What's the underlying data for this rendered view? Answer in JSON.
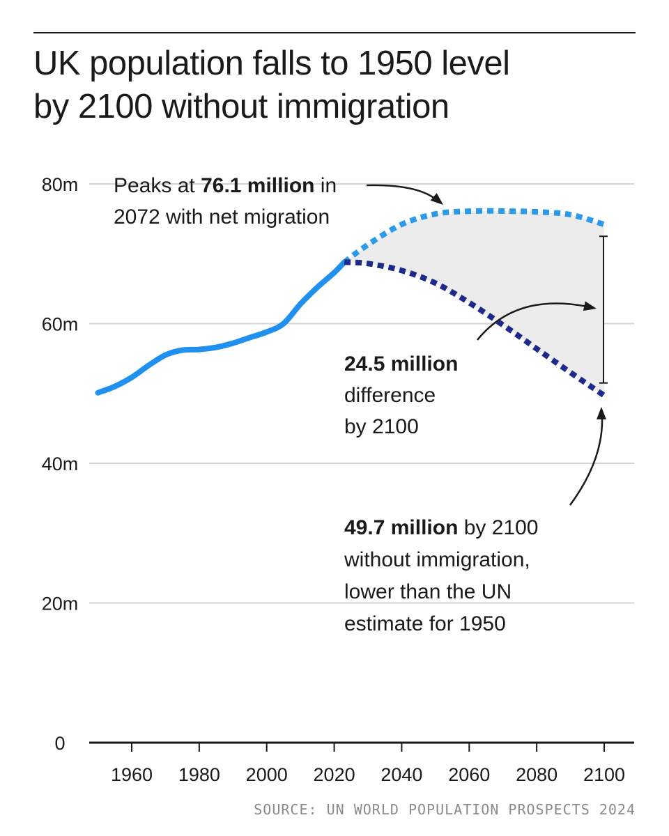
{
  "title_lines": [
    "UK population falls to 1950 level",
    "by 2100 without immigration"
  ],
  "source": "SOURCE: UN WORLD POPULATION PROSPECTS 2024",
  "colors": {
    "historical": "#1f8ff0",
    "with_migration": "#2b9ae8",
    "without_immigration": "#1e2a8a",
    "difference_fill": "#ececec",
    "grid": "#d4d4d4",
    "axis": "#1a1a1a",
    "text": "#1a1a1a"
  },
  "chart_data": {
    "type": "line",
    "title": "UK population falls to 1950 level by 2100 without immigration",
    "xlabel": "",
    "ylabel": "",
    "xlim": [
      1940,
      2110
    ],
    "ylim": [
      0,
      80
    ],
    "x_ticks": [
      1960,
      1980,
      2000,
      2020,
      2040,
      2060,
      2080,
      2100
    ],
    "y_ticks": [
      {
        "value": 0,
        "label": "0"
      },
      {
        "value": 20,
        "label": "20m"
      },
      {
        "value": 40,
        "label": "40m"
      },
      {
        "value": 60,
        "label": "60m"
      },
      {
        "value": 80,
        "label": "80m"
      }
    ],
    "grid": true,
    "series": [
      {
        "style": "solid",
        "points": [
          [
            1950,
            50.1
          ],
          [
            1955,
            51.0
          ],
          [
            1960,
            52.3
          ],
          [
            1965,
            54.0
          ],
          [
            1970,
            55.5
          ],
          [
            1975,
            56.2
          ],
          [
            1980,
            56.3
          ],
          [
            1985,
            56.6
          ],
          [
            1990,
            57.2
          ],
          [
            1995,
            58.0
          ],
          [
            2000,
            58.8
          ],
          [
            2005,
            60.0
          ],
          [
            2010,
            62.8
          ],
          [
            2015,
            65.2
          ],
          [
            2020,
            67.3
          ],
          [
            2023,
            68.8
          ]
        ]
      },
      {
        "style": "dotted",
        "points": [
          [
            2023,
            68.8
          ],
          [
            2030,
            71.3
          ],
          [
            2040,
            74.2
          ],
          [
            2050,
            75.7
          ],
          [
            2060,
            76.1
          ],
          [
            2072,
            76.1
          ],
          [
            2080,
            76.0
          ],
          [
            2090,
            75.6
          ],
          [
            2100,
            74.2
          ]
        ]
      },
      {
        "style": "dotted",
        "points": [
          [
            2023,
            68.8
          ],
          [
            2030,
            68.6
          ],
          [
            2040,
            67.6
          ],
          [
            2050,
            65.8
          ],
          [
            2060,
            63.0
          ],
          [
            2070,
            59.8
          ],
          [
            2080,
            56.4
          ],
          [
            2090,
            53.0
          ],
          [
            2100,
            49.7
          ]
        ]
      }
    ],
    "difference_bracket": {
      "x": 2100,
      "from": 51.5,
      "to": 72.5
    },
    "annotations": [
      {
        "id": "peak",
        "lines": [
          [
            {
              "t": "Peaks at ",
              "b": false
            },
            {
              "t": "76.1 million",
              "b": true
            },
            {
              "t": " in",
              "b": false
            }
          ],
          [
            {
              "t": "2072 with net migration",
              "b": false
            }
          ]
        ]
      },
      {
        "id": "difference",
        "lines": [
          [
            {
              "t": "24.5 million",
              "b": true
            }
          ],
          [
            {
              "t": "difference",
              "b": false
            }
          ],
          [
            {
              "t": "by 2100",
              "b": false
            }
          ]
        ]
      },
      {
        "id": "low",
        "lines": [
          [
            {
              "t": "49.7 million",
              "b": true
            },
            {
              "t": " by 2100",
              "b": false
            }
          ],
          [
            {
              "t": "without immigration,",
              "b": false
            }
          ],
          [
            {
              "t": "lower than the UN",
              "b": false
            }
          ],
          [
            {
              "t": "estimate for 1950",
              "b": false
            }
          ]
        ]
      }
    ]
  }
}
